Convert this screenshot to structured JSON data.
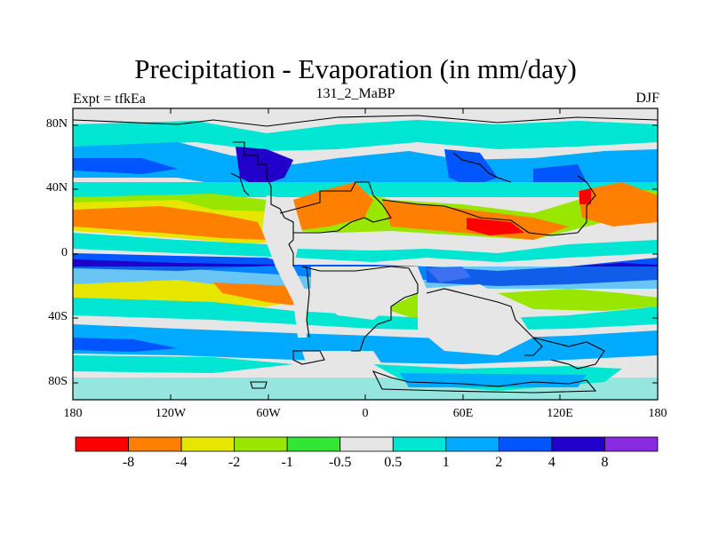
{
  "title": "Precipitation - Evaporation (in mm/day)",
  "subtitle_left": "Expt = tfkEa",
  "subtitle_center": "131_2_MaBP",
  "subtitle_right": "DJF",
  "lat_ticks": [
    "80N",
    "40N",
    "0",
    "40S",
    "80S"
  ],
  "lon_ticks": [
    "180",
    "120W",
    "60W",
    "0",
    "60E",
    "120E",
    "180"
  ],
  "colorbar": {
    "labels": [
      "-8",
      "-4",
      "-2",
      "-1",
      "-0.5",
      "0.5",
      "1",
      "2",
      "4",
      "8"
    ],
    "colors": [
      "#ff0000",
      "#ff8000",
      "#e6e600",
      "#99e600",
      "#33e633",
      "#e6e6e6",
      "#00e6d2",
      "#00aaff",
      "#0055ff",
      "#2200cc",
      "#8a2be2"
    ]
  },
  "colors": {
    "land_outline": "#000000",
    "neutral": "#e6e6e6"
  }
}
